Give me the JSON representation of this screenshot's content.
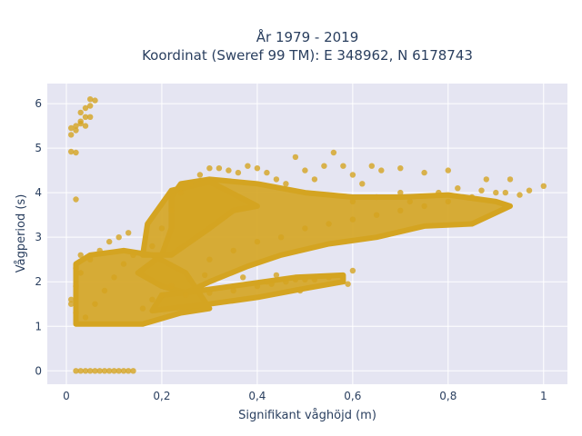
{
  "chart_data": {
    "type": "scatter",
    "title_line1": "År 1979 - 2019",
    "title_line2": "Koordinat (Sweref 99 TM): E 348962, N 6178743",
    "xlabel": "Signifikant våghöjd (m)",
    "ylabel": "Vågperiod (s)",
    "xlim": [
      -0.04,
      1.05
    ],
    "ylim": [
      -0.3,
      6.45
    ],
    "xticks": [
      0,
      0.2,
      0.4,
      0.6,
      0.8,
      1
    ],
    "xtick_labels": [
      "0",
      "0,2",
      "0,4",
      "0,6",
      "0,8",
      "1"
    ],
    "yticks": [
      0,
      1,
      2,
      3,
      4,
      5,
      6
    ],
    "ytick_labels": [
      "0",
      "1",
      "2",
      "3",
      "4",
      "5",
      "6"
    ],
    "grid": true,
    "colors": {
      "marker": "#d4a421",
      "plot_bg": "#e5e5f2",
      "grid": "#ffffff"
    },
    "series": [
      {
        "values_desc": "",
        "points": [
          [
            0.02,
            0
          ],
          [
            0.03,
            0
          ],
          [
            0.04,
            0
          ],
          [
            0.05,
            0
          ],
          [
            0.06,
            0
          ],
          [
            0.07,
            0
          ],
          [
            0.08,
            0
          ],
          [
            0.09,
            0
          ],
          [
            0.1,
            0
          ],
          [
            0.11,
            0
          ],
          [
            0.12,
            0
          ],
          [
            0.13,
            0
          ],
          [
            0.14,
            0
          ],
          [
            0.01,
            5.3
          ],
          [
            0.01,
            5.45
          ],
          [
            0.02,
            5.5
          ],
          [
            0.03,
            5.6
          ],
          [
            0.03,
            5.8
          ],
          [
            0.04,
            5.9
          ],
          [
            0.04,
            5.7
          ],
          [
            0.05,
            5.95
          ],
          [
            0.05,
            6.1
          ],
          [
            0.06,
            6.07
          ],
          [
            0.02,
            5.4
          ],
          [
            0.03,
            5.55
          ],
          [
            0.05,
            5.7
          ],
          [
            0.04,
            5.5
          ],
          [
            0.01,
            4.92
          ],
          [
            0.02,
            4.9
          ],
          [
            0.02,
            3.85
          ],
          [
            0.01,
            1.5
          ],
          [
            0.01,
            1.6
          ],
          [
            0.02,
            1.3
          ],
          [
            0.02,
            2.3
          ],
          [
            0.03,
            2.2
          ],
          [
            0.02,
            1.9
          ],
          [
            0.03,
            2.6
          ],
          [
            0.04,
            1.2
          ],
          [
            0.06,
            1.5
          ],
          [
            0.08,
            1.8
          ],
          [
            0.1,
            2.1
          ],
          [
            0.12,
            2.4
          ],
          [
            0.14,
            2.6
          ],
          [
            0.05,
            2.5
          ],
          [
            0.07,
            2.7
          ],
          [
            0.09,
            2.9
          ],
          [
            0.11,
            3.0
          ],
          [
            0.13,
            3.1
          ],
          [
            0.16,
            1.4
          ],
          [
            0.18,
            1.6
          ],
          [
            0.2,
            1.7
          ],
          [
            0.22,
            1.9
          ],
          [
            0.18,
            2.8
          ],
          [
            0.2,
            3.2
          ],
          [
            0.22,
            3.6
          ],
          [
            0.24,
            4.0
          ],
          [
            0.26,
            4.2
          ],
          [
            0.28,
            4.4
          ],
          [
            0.3,
            4.55
          ],
          [
            0.32,
            4.55
          ],
          [
            0.34,
            4.5
          ],
          [
            0.36,
            4.45
          ],
          [
            0.38,
            4.6
          ],
          [
            0.4,
            4.55
          ],
          [
            0.42,
            4.45
          ],
          [
            0.44,
            4.3
          ],
          [
            0.46,
            4.2
          ],
          [
            0.48,
            4.8
          ],
          [
            0.5,
            4.5
          ],
          [
            0.52,
            4.3
          ],
          [
            0.54,
            4.6
          ],
          [
            0.56,
            4.9
          ],
          [
            0.58,
            4.6
          ],
          [
            0.6,
            4.4
          ],
          [
            0.62,
            4.2
          ],
          [
            0.64,
            4.6
          ],
          [
            0.66,
            4.5
          ],
          [
            0.3,
            2.5
          ],
          [
            0.35,
            2.7
          ],
          [
            0.4,
            2.9
          ],
          [
            0.45,
            3.0
          ],
          [
            0.5,
            3.2
          ],
          [
            0.55,
            3.3
          ],
          [
            0.6,
            3.4
          ],
          [
            0.65,
            3.5
          ],
          [
            0.7,
            3.6
          ],
          [
            0.75,
            3.7
          ],
          [
            0.8,
            3.8
          ],
          [
            0.85,
            3.9
          ],
          [
            0.9,
            4.0
          ],
          [
            0.6,
            3.8
          ],
          [
            0.65,
            3.9
          ],
          [
            0.7,
            4.0
          ],
          [
            0.72,
            3.8
          ],
          [
            0.78,
            4.0
          ],
          [
            0.82,
            4.1
          ],
          [
            0.87,
            4.05
          ],
          [
            0.92,
            4.0
          ],
          [
            0.95,
            3.95
          ],
          [
            0.97,
            4.05
          ],
          [
            1.0,
            4.15
          ],
          [
            0.93,
            4.3
          ],
          [
            0.88,
            4.3
          ],
          [
            0.8,
            4.5
          ],
          [
            0.7,
            4.55
          ],
          [
            0.75,
            4.45
          ],
          [
            0.25,
            1.7
          ],
          [
            0.3,
            1.75
          ],
          [
            0.35,
            1.8
          ],
          [
            0.4,
            1.9
          ],
          [
            0.43,
            1.95
          ],
          [
            0.46,
            2.0
          ],
          [
            0.48,
            2.05
          ],
          [
            0.5,
            2.05
          ],
          [
            0.52,
            2.05
          ],
          [
            0.55,
            2.1
          ],
          [
            0.59,
            1.95
          ],
          [
            0.49,
            1.8
          ],
          [
            0.42,
            2.0
          ],
          [
            0.37,
            2.1
          ],
          [
            0.6,
            2.25
          ],
          [
            0.44,
            2.15
          ],
          [
            0.29,
            2.15
          ]
        ]
      }
    ]
  }
}
